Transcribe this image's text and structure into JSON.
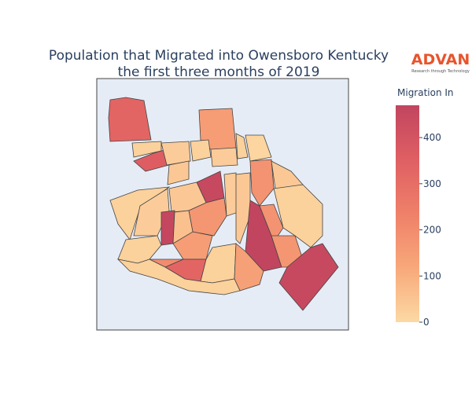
{
  "chart_data": {
    "type": "choropleth",
    "title": [
      "Population that Migrated into Owensboro Kentucky",
      "the first three months of 2019"
    ],
    "logo": {
      "name": "ADVAN",
      "tagline": "Research through Technology"
    },
    "colorbar_title": "Migration In",
    "zlim": [
      0,
      470
    ],
    "zticks": [
      0,
      100,
      200,
      300,
      400
    ],
    "colorscale": [
      "#fcd9a3",
      "#f8a87a",
      "#ef8069",
      "#df5f63",
      "#c1455f"
    ],
    "values": [
      330,
      20,
      360,
      150,
      20,
      10,
      30,
      20,
      30,
      40,
      450,
      180,
      40,
      20,
      30,
      40,
      460,
      170,
      30,
      40,
      470,
      180,
      20,
      60,
      20,
      150,
      200,
      330,
      20,
      140,
      170,
      450,
      20
    ]
  }
}
